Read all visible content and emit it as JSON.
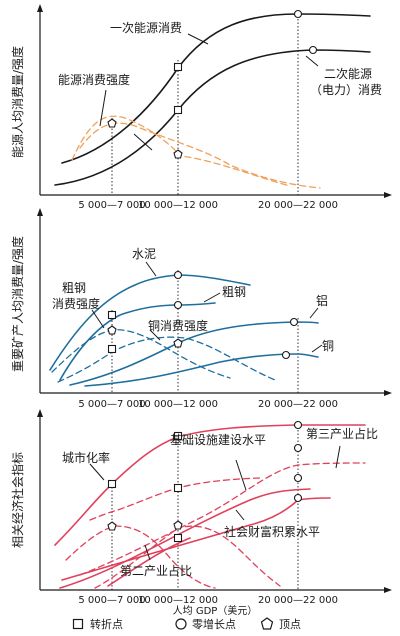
{
  "colors": {
    "black": "#1a1a1a",
    "orange": "#f0a15a",
    "blue": "#1f6e9e",
    "red": "#e0405c"
  },
  "x_ticks": [
    "5 000—7 000",
    "10 000—12 000",
    "20 000—22 000"
  ],
  "x_axis_title": "人均 GDP（美元）",
  "panels": {
    "energy": {
      "ylabel": "能源人均消费量/强度",
      "labels": {
        "primary": "一次能源消费",
        "secondary_1": "二次能源",
        "secondary_2": "（电力）消费",
        "intensity": "能源消费强度"
      }
    },
    "minerals": {
      "ylabel": "重要矿产人均消费量/强度",
      "labels": {
        "cement": "水泥",
        "steel": "粗钢",
        "steel_int_1": "粗钢",
        "steel_int_2": "消费强度",
        "copper_int": "铜消费强度",
        "aluminum": "铝",
        "copper": "铜"
      }
    },
    "socio": {
      "ylabel": "相关经济社会指标",
      "labels": {
        "urban": "城市化率",
        "infra": "基础设施建设水平",
        "tertiary": "第三产业占比",
        "wealth": "社会财富积累水平",
        "secondary": "第二产业占比"
      }
    }
  },
  "legend": [
    {
      "icon": "square-marker-icon",
      "label": "转折点"
    },
    {
      "icon": "circle-marker-icon",
      "label": "零增长点"
    },
    {
      "icon": "pentagon-marker-icon",
      "label": "顶点"
    }
  ]
}
